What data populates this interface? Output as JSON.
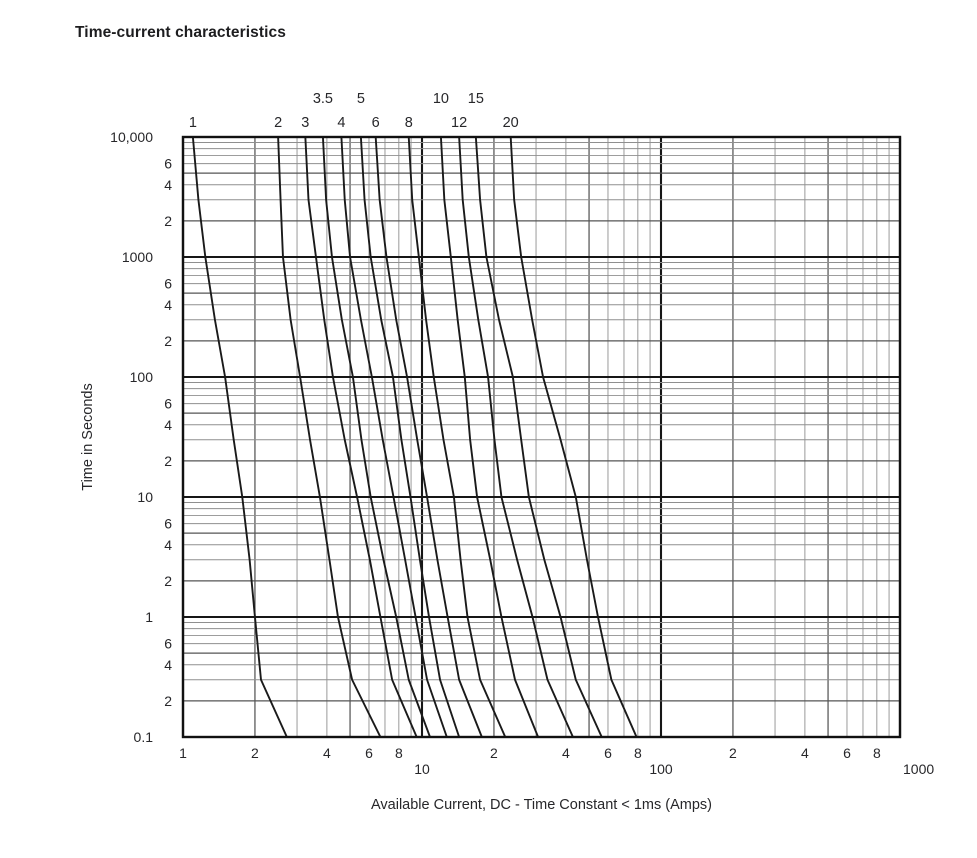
{
  "title": "Time-current characteristics",
  "chart_data": {
    "type": "line",
    "title": "Time-current characteristics",
    "xlabel": "Available Current, DC - Time Constant < 1ms (Amps)",
    "ylabel": "Time in Seconds",
    "x_axis": {
      "scale": "log",
      "min": 1,
      "max": 1000,
      "grid": "log-minor-on",
      "ticks": [
        {
          "value": 1,
          "label": "1",
          "row": "upper"
        },
        {
          "value": 2,
          "label": "2",
          "row": "upper"
        },
        {
          "value": 4,
          "label": "4",
          "row": "upper"
        },
        {
          "value": 6,
          "label": "6",
          "row": "upper"
        },
        {
          "value": 8,
          "label": "8",
          "row": "upper"
        },
        {
          "value": 10,
          "label": "10",
          "row": "lower"
        },
        {
          "value": 20,
          "label": "2",
          "row": "upper"
        },
        {
          "value": 40,
          "label": "4",
          "row": "upper"
        },
        {
          "value": 60,
          "label": "6",
          "row": "upper"
        },
        {
          "value": 80,
          "label": "8",
          "row": "upper"
        },
        {
          "value": 100,
          "label": "100",
          "row": "lower"
        },
        {
          "value": 200,
          "label": "2",
          "row": "upper"
        },
        {
          "value": 400,
          "label": "4",
          "row": "upper"
        },
        {
          "value": 600,
          "label": "6",
          "row": "upper"
        },
        {
          "value": 800,
          "label": "8",
          "row": "upper"
        },
        {
          "value": 1000,
          "label": "1000",
          "row": "lower",
          "align": "left"
        }
      ]
    },
    "y_axis": {
      "scale": "log",
      "min": 0.1,
      "max": 10000,
      "grid": "log-minor-on",
      "ticks": [
        {
          "value": 10000,
          "label": "10,000",
          "kind": "major"
        },
        {
          "value": 6000,
          "label": "6",
          "kind": "minor"
        },
        {
          "value": 4000,
          "label": "4",
          "kind": "minor"
        },
        {
          "value": 2000,
          "label": "2",
          "kind": "minor"
        },
        {
          "value": 1000,
          "label": "1000",
          "kind": "major"
        },
        {
          "value": 600,
          "label": "6",
          "kind": "minor"
        },
        {
          "value": 400,
          "label": "4",
          "kind": "minor"
        },
        {
          "value": 200,
          "label": "2",
          "kind": "minor"
        },
        {
          "value": 100,
          "label": "100",
          "kind": "major"
        },
        {
          "value": 60,
          "label": "6",
          "kind": "minor"
        },
        {
          "value": 40,
          "label": "4",
          "kind": "minor"
        },
        {
          "value": 20,
          "label": "2",
          "kind": "minor"
        },
        {
          "value": 10,
          "label": "10",
          "kind": "major"
        },
        {
          "value": 6,
          "label": "6",
          "kind": "minor"
        },
        {
          "value": 4,
          "label": "4",
          "kind": "minor"
        },
        {
          "value": 2,
          "label": "2",
          "kind": "minor"
        },
        {
          "value": 1,
          "label": "1",
          "kind": "major"
        },
        {
          "value": 0.6,
          "label": "6",
          "kind": "minor"
        },
        {
          "value": 0.4,
          "label": "4",
          "kind": "minor"
        },
        {
          "value": 0.2,
          "label": "2",
          "kind": "minor"
        },
        {
          "value": 0.1,
          "label": "0.1",
          "kind": "major"
        }
      ]
    },
    "times_seconds": [
      10000,
      3000,
      1000,
      300,
      100,
      30,
      10,
      3,
      1,
      0.3,
      0.1
    ],
    "series": [
      {
        "label": "1",
        "rating_amps": 1,
        "label_row": "lower",
        "currents": [
          1.1,
          1.16,
          1.24,
          1.36,
          1.5,
          1.63,
          1.77,
          1.9,
          2.0,
          2.12,
          2.72
        ]
      },
      {
        "label": "2",
        "rating_amps": 2,
        "label_row": "lower",
        "currents": [
          2.5,
          2.56,
          2.62,
          2.82,
          3.09,
          3.4,
          3.74,
          4.1,
          4.45,
          5.1,
          6.7
        ]
      },
      {
        "label": "3",
        "rating_amps": 3,
        "label_row": "lower",
        "currents": [
          3.25,
          3.35,
          3.6,
          3.9,
          4.24,
          4.75,
          5.35,
          6.05,
          6.7,
          7.5,
          9.5
        ]
      },
      {
        "label": "3.5",
        "rating_amps": 3.5,
        "label_row": "upper",
        "currents": [
          3.85,
          3.97,
          4.2,
          4.62,
          5.14,
          5.58,
          6.1,
          6.9,
          7.8,
          8.8,
          10.8
        ]
      },
      {
        "label": "4",
        "rating_amps": 4,
        "label_row": "lower",
        "currents": [
          4.6,
          4.75,
          5.0,
          5.55,
          6.17,
          6.85,
          7.6,
          8.5,
          9.4,
          10.5,
          12.7
        ]
      },
      {
        "label": "5",
        "rating_amps": 5,
        "label_row": "upper",
        "currents": [
          5.55,
          5.75,
          6.1,
          6.75,
          7.56,
          8.2,
          8.95,
          9.8,
          10.7,
          11.9,
          14.3
        ]
      },
      {
        "label": "6",
        "rating_amps": 6,
        "label_row": "lower",
        "currents": [
          6.4,
          6.65,
          7.1,
          7.8,
          8.66,
          9.55,
          10.5,
          11.6,
          12.8,
          14.3,
          17.8
        ]
      },
      {
        "label": "8",
        "rating_amps": 8,
        "label_row": "lower",
        "currents": [
          8.8,
          9.1,
          9.7,
          10.4,
          11.2,
          12.3,
          13.6,
          14.5,
          15.5,
          17.5,
          22.3
        ]
      },
      {
        "label": "10",
        "rating_amps": 10,
        "label_row": "upper",
        "currents": [
          12.0,
          12.4,
          13.2,
          14.1,
          15.1,
          15.9,
          17.0,
          19.3,
          21.5,
          24.5,
          30.6
        ]
      },
      {
        "label": "12",
        "rating_amps": 12,
        "label_row": "lower",
        "currents": [
          14.3,
          14.8,
          15.7,
          17.2,
          18.9,
          20.1,
          21.5,
          25.0,
          29.0,
          33.5,
          42.8
        ]
      },
      {
        "label": "15",
        "rating_amps": 15,
        "label_row": "upper",
        "currents": [
          16.8,
          17.5,
          18.6,
          21.0,
          24.0,
          26.0,
          28.0,
          32.5,
          38.0,
          44.0,
          56.5
        ]
      },
      {
        "label": "20",
        "rating_amps": 20,
        "label_row": "lower",
        "currents": [
          23.5,
          24.3,
          26.0,
          28.9,
          32.1,
          38.0,
          44.0,
          49.0,
          54.5,
          62.0,
          79.0
        ]
      }
    ],
    "style": {
      "curve_color": "#1a1a1a",
      "major_grid_color": "#161616",
      "semi_grid_color": "#555555",
      "minor_grid_color": "#8f8f8f",
      "background": "#ffffff"
    }
  }
}
